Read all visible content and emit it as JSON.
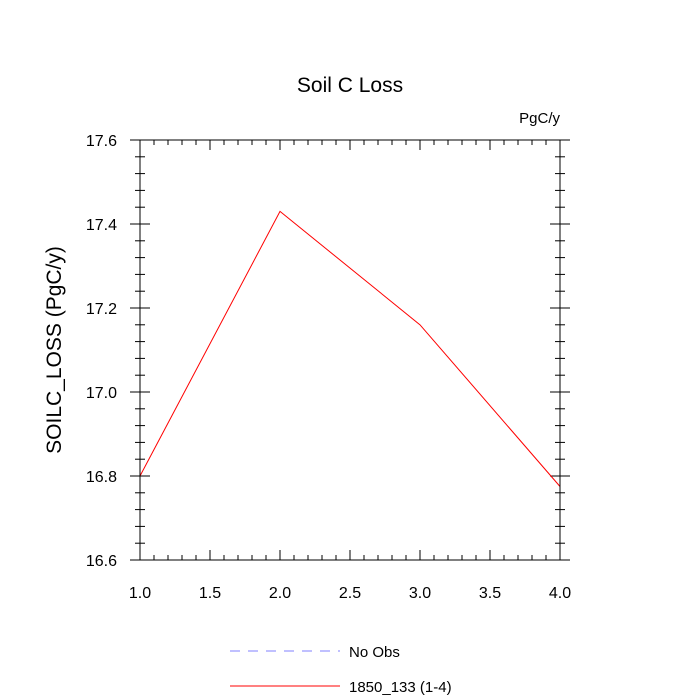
{
  "chart_data": {
    "type": "line",
    "title": "Soil C Loss",
    "units_label": "PgC/y",
    "xlabel": "",
    "ylabel": "SOILC_LOSS  (PgC/y)",
    "xlim": [
      1.0,
      4.0
    ],
    "ylim": [
      16.6,
      17.6
    ],
    "x_ticks": [
      "1.0",
      "1.5",
      "2.0",
      "2.5",
      "3.0",
      "3.5",
      "4.0"
    ],
    "y_ticks": [
      "16.6",
      "16.8",
      "17.0",
      "17.2",
      "17.4",
      "17.6"
    ],
    "grid": false,
    "legend_position": "bottom",
    "series": [
      {
        "name": "No Obs",
        "color": "#8080ff",
        "style": "dashed",
        "x": [],
        "y": []
      },
      {
        "name": "1850_133 (1-4)",
        "color": "#ff0000",
        "style": "solid",
        "x": [
          1.0,
          2.0,
          3.0,
          4.0
        ],
        "y": [
          16.8,
          17.43,
          17.16,
          16.775
        ]
      }
    ]
  }
}
